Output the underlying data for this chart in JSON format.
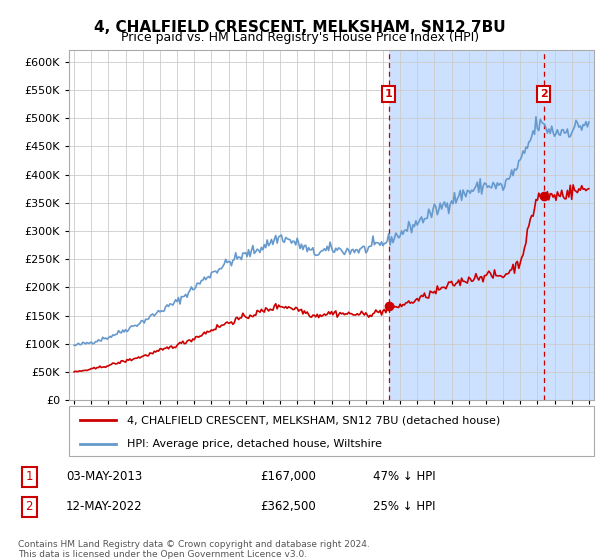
{
  "title": "4, CHALFIELD CRESCENT, MELKSHAM, SN12 7BU",
  "subtitle": "Price paid vs. HM Land Registry's House Price Index (HPI)",
  "sale1_date": "03-MAY-2013",
  "sale1_price": 167000,
  "sale1_year": 2013.33,
  "sale2_date": "12-MAY-2022",
  "sale2_price": 362500,
  "sale2_year": 2022.36,
  "legend_line1": "4, CHALFIELD CRESCENT, MELKSHAM, SN12 7BU (detached house)",
  "legend_line2": "HPI: Average price, detached house, Wiltshire",
  "footer": "Contains HM Land Registry data © Crown copyright and database right 2024.\nThis data is licensed under the Open Government Licence v3.0.",
  "hpi_color": "#6699cc",
  "price_color": "#cc0000",
  "bg_color": "#ddeeff",
  "shade_color": "#cce0ff",
  "ylim": [
    0,
    620000
  ],
  "xlim_start": 1994.7,
  "xlim_end": 2025.3
}
